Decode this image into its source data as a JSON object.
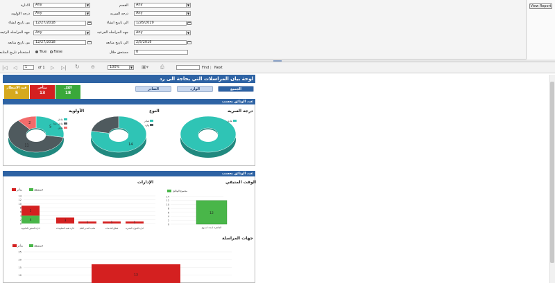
{
  "params": {
    "col1": [
      {
        "label": "الادارة",
        "value": "Any",
        "type": "select"
      },
      {
        "label": "درجه الاولويه",
        "value": "Any",
        "type": "select"
      },
      {
        "label": "من تاريخ انشاء",
        "value": "12/27/2018",
        "type": "date"
      },
      {
        "label": "جهه المراسله الرئيسيه",
        "value": "Any",
        "type": "select"
      },
      {
        "label": "من تاريخ متابعه",
        "value": "12/27/2018",
        "type": "date"
      },
      {
        "label": "استخدام تاريخ المتابعة",
        "true_label": "True",
        "false_label": "False",
        "selected": "True",
        "type": "radio"
      }
    ],
    "col2": [
      {
        "label": "القسم",
        "value": "Any",
        "type": "select"
      },
      {
        "label": "درجه السريه",
        "value": "Any",
        "type": "select"
      },
      {
        "label": "الي تاريخ انشاء",
        "value": "1/26/2019",
        "type": "date"
      },
      {
        "label": "جهه المراسله الفرعيه",
        "value": "Any",
        "type": "select"
      },
      {
        "label": "الي تاريخ متابعه",
        "value": "2/5/2019",
        "type": "date"
      },
      {
        "label": "مستحق خلال",
        "value": "0",
        "type": "text"
      }
    ],
    "view_report_label": "View Report"
  },
  "toolbar": {
    "page_value": "1",
    "of_label": "of 1",
    "zoom_value": "100%",
    "find_placeholder": "",
    "find_label": "Find",
    "next_label": "Next",
    "sep": "|"
  },
  "report": {
    "title": "لوحة بيان المراسلات التي بحاجة الى رد",
    "tabs": [
      "الجميع",
      "الوارد",
      "الصادر"
    ],
    "kpis": [
      {
        "label": "الكل",
        "value": "18",
        "color": "#3aa83a"
      },
      {
        "label": "متأخر",
        "value": "13",
        "color": "#d42020"
      },
      {
        "label": "قيد الانتظار",
        "value": "5",
        "color": "#d6a91e"
      }
    ],
    "section1_title": "عدد الوثائق بحسب",
    "section2_title": "عدد الوثائق بحسب",
    "donuts": [
      {
        "title": "درجه السريه",
        "legend": [
          {
            "name": "عادي",
            "color": "#2fc4b5"
          }
        ],
        "slices": [
          {
            "value": 18,
            "color": "#2fc4b5",
            "label": ""
          }
        ]
      },
      {
        "title": "النوع",
        "legend": [
          {
            "name": "صادر",
            "color": "#2fc4b5"
          },
          {
            "name": "وارد",
            "color": "#4f5a5e"
          }
        ],
        "slices": [
          {
            "value": 14,
            "color": "#2fc4b5",
            "label": "14"
          },
          {
            "value": 4,
            "color": "#4f5a5e",
            "label": ""
          }
        ]
      },
      {
        "title": "الأولوية",
        "legend": [
          {
            "name": "عاجل",
            "color": "#2fc4b5"
          },
          {
            "name": "عاجل جدا",
            "color": "#4f5a5e"
          },
          {
            "name": "عادي",
            "color": "#f26b6b"
          }
        ],
        "slices": [
          {
            "value": 5,
            "color": "#2fc4b5",
            "label": "5"
          },
          {
            "value": 11,
            "color": "#4f5a5e",
            "label": "11"
          },
          {
            "value": 2,
            "color": "#f26b6b",
            "label": "2"
          }
        ]
      }
    ],
    "time_chart": {
      "title": "الوقت المتبقي",
      "legend": "مجموع الوثائق",
      "ticks": [
        "14",
        "12",
        "10",
        "8",
        "6",
        "4",
        "2",
        "0"
      ],
      "category": "الجاهزة لمدة اسبوع",
      "value": "12"
    },
    "dept_chart": {
      "title": "الإدارات",
      "legend": [
        {
          "name": "متأخر",
          "color": "#d42020"
        },
        {
          "name": "المتعطلة",
          "color": "#49b649"
        }
      ],
      "ticks": [
        "14",
        "12",
        "10",
        "8",
        "6",
        "4",
        "2",
        "0"
      ],
      "categories": [
        "ادارة الشئون القانونية",
        "ادارة تقنية المعلومات",
        "مكتب المدير العام",
        "قطاع الخدمات",
        "ادارة الموارد البشرية"
      ],
      "red_labels": [
        "5",
        "3",
        "1",
        "1",
        "1"
      ],
      "green_labels": [
        "4",
        "",
        "",
        "",
        ""
      ]
    },
    "corr_chart": {
      "title": "جهات المراسلة",
      "legend": [
        {
          "name": "متأخر",
          "color": "#d42020"
        },
        {
          "name": "المتعطلة",
          "color": "#49b649"
        }
      ],
      "ticks": [
        "25",
        "20",
        "15",
        "10"
      ],
      "red_label": "13"
    }
  },
  "chart_data": [
    {
      "type": "pie",
      "title": "درجه السريه",
      "categories": [
        "عادي"
      ],
      "values": [
        18
      ]
    },
    {
      "type": "pie",
      "title": "النوع",
      "categories": [
        "صادر",
        "وارد"
      ],
      "values": [
        14,
        4
      ]
    },
    {
      "type": "pie",
      "title": "الأولوية",
      "categories": [
        "عاجل",
        "عاجل جدا",
        "عادي"
      ],
      "values": [
        5,
        11,
        2
      ]
    },
    {
      "type": "bar",
      "title": "الوقت المتبقي",
      "categories": [
        "الجاهزة لمدة اسبوع"
      ],
      "series": [
        {
          "name": "مجموع الوثائق",
          "values": [
            12
          ]
        }
      ],
      "ylim": [
        0,
        14
      ]
    },
    {
      "type": "bar",
      "title": "الإدارات",
      "categories": [
        "ادارة الشئون القانونية",
        "ادارة تقنية المعلومات",
        "مكتب المدير العام",
        "قطاع الخدمات",
        "ادارة الموارد البشرية"
      ],
      "series": [
        {
          "name": "متأخر",
          "values": [
            5,
            3,
            1,
            1,
            1
          ]
        },
        {
          "name": "المتعطلة",
          "values": [
            4,
            0,
            0,
            0,
            0
          ]
        }
      ],
      "ylim": [
        0,
        14
      ]
    },
    {
      "type": "bar",
      "title": "جهات المراسلة",
      "categories": [
        ""
      ],
      "series": [
        {
          "name": "متأخر",
          "values": [
            13
          ]
        },
        {
          "name": "المتعطلة",
          "values": [
            4
          ]
        }
      ],
      "ylim": [
        0,
        25
      ]
    }
  ]
}
